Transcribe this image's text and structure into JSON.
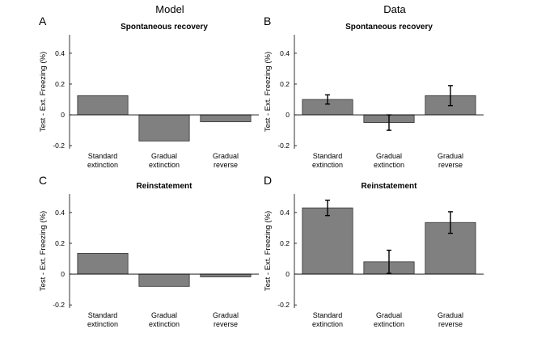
{
  "columns": [
    "Model",
    "Data"
  ],
  "chart_data": [
    {
      "id": "A",
      "type": "bar",
      "column": "Model",
      "title": "Spontaneous recovery",
      "ylabel": "Test - Ext. Freezing (%)",
      "categories": [
        "Standard extinction",
        "Gradual extinction",
        "Gradual reverse"
      ],
      "values": [
        0.125,
        -0.17,
        -0.045
      ],
      "ylim": [
        -0.22,
        0.52
      ],
      "yticks": [
        -0.2,
        0,
        0.2,
        0.4
      ],
      "yticklabels": [
        "-0.2",
        "0",
        "0.2",
        "0.4"
      ]
    },
    {
      "id": "B",
      "type": "bar",
      "column": "Data",
      "title": "Spontaneous recovery",
      "ylabel": "Test - Ext. Freezing (%)",
      "categories": [
        "Standard extinction",
        "Gradual extinction",
        "Gradual reverse"
      ],
      "values": [
        0.1,
        -0.05,
        0.125
      ],
      "errors": [
        0.03,
        0.05,
        0.065
      ],
      "ylim": [
        -0.22,
        0.52
      ],
      "yticks": [
        -0.2,
        0,
        0.2,
        0.4
      ],
      "yticklabels": [
        "-0.2",
        "0",
        "0.2",
        "0.4"
      ]
    },
    {
      "id": "C",
      "type": "bar",
      "column": "Model",
      "title": "Reinstatement",
      "ylabel": "Test - Ext. Freezing (%)",
      "categories": [
        "Standard extinction",
        "Gradual extinction",
        "Gradual reverse"
      ],
      "values": [
        0.135,
        -0.08,
        -0.018
      ],
      "ylim": [
        -0.22,
        0.52
      ],
      "yticks": [
        -0.2,
        0,
        0.2,
        0.4
      ],
      "yticklabels": [
        "-0.2",
        "0",
        "0.2",
        "0.4"
      ]
    },
    {
      "id": "D",
      "type": "bar",
      "column": "Data",
      "title": "Reinstatement",
      "ylabel": "Test - Ext. Freezing (%)",
      "categories": [
        "Standard extinction",
        "Gradual extinction",
        "Gradual reverse"
      ],
      "values": [
        0.43,
        0.08,
        0.335
      ],
      "errors": [
        0.05,
        0.075,
        0.07
      ],
      "ylim": [
        -0.22,
        0.52
      ],
      "yticks": [
        -0.2,
        0,
        0.2,
        0.4
      ],
      "yticklabels": [
        "-0.2",
        "0",
        "0.2",
        "0.4"
      ]
    }
  ],
  "colors": {
    "bar_fill": "#808080",
    "bar_stroke": "#333333",
    "axis": "#000000",
    "zero_line": "#000000"
  }
}
